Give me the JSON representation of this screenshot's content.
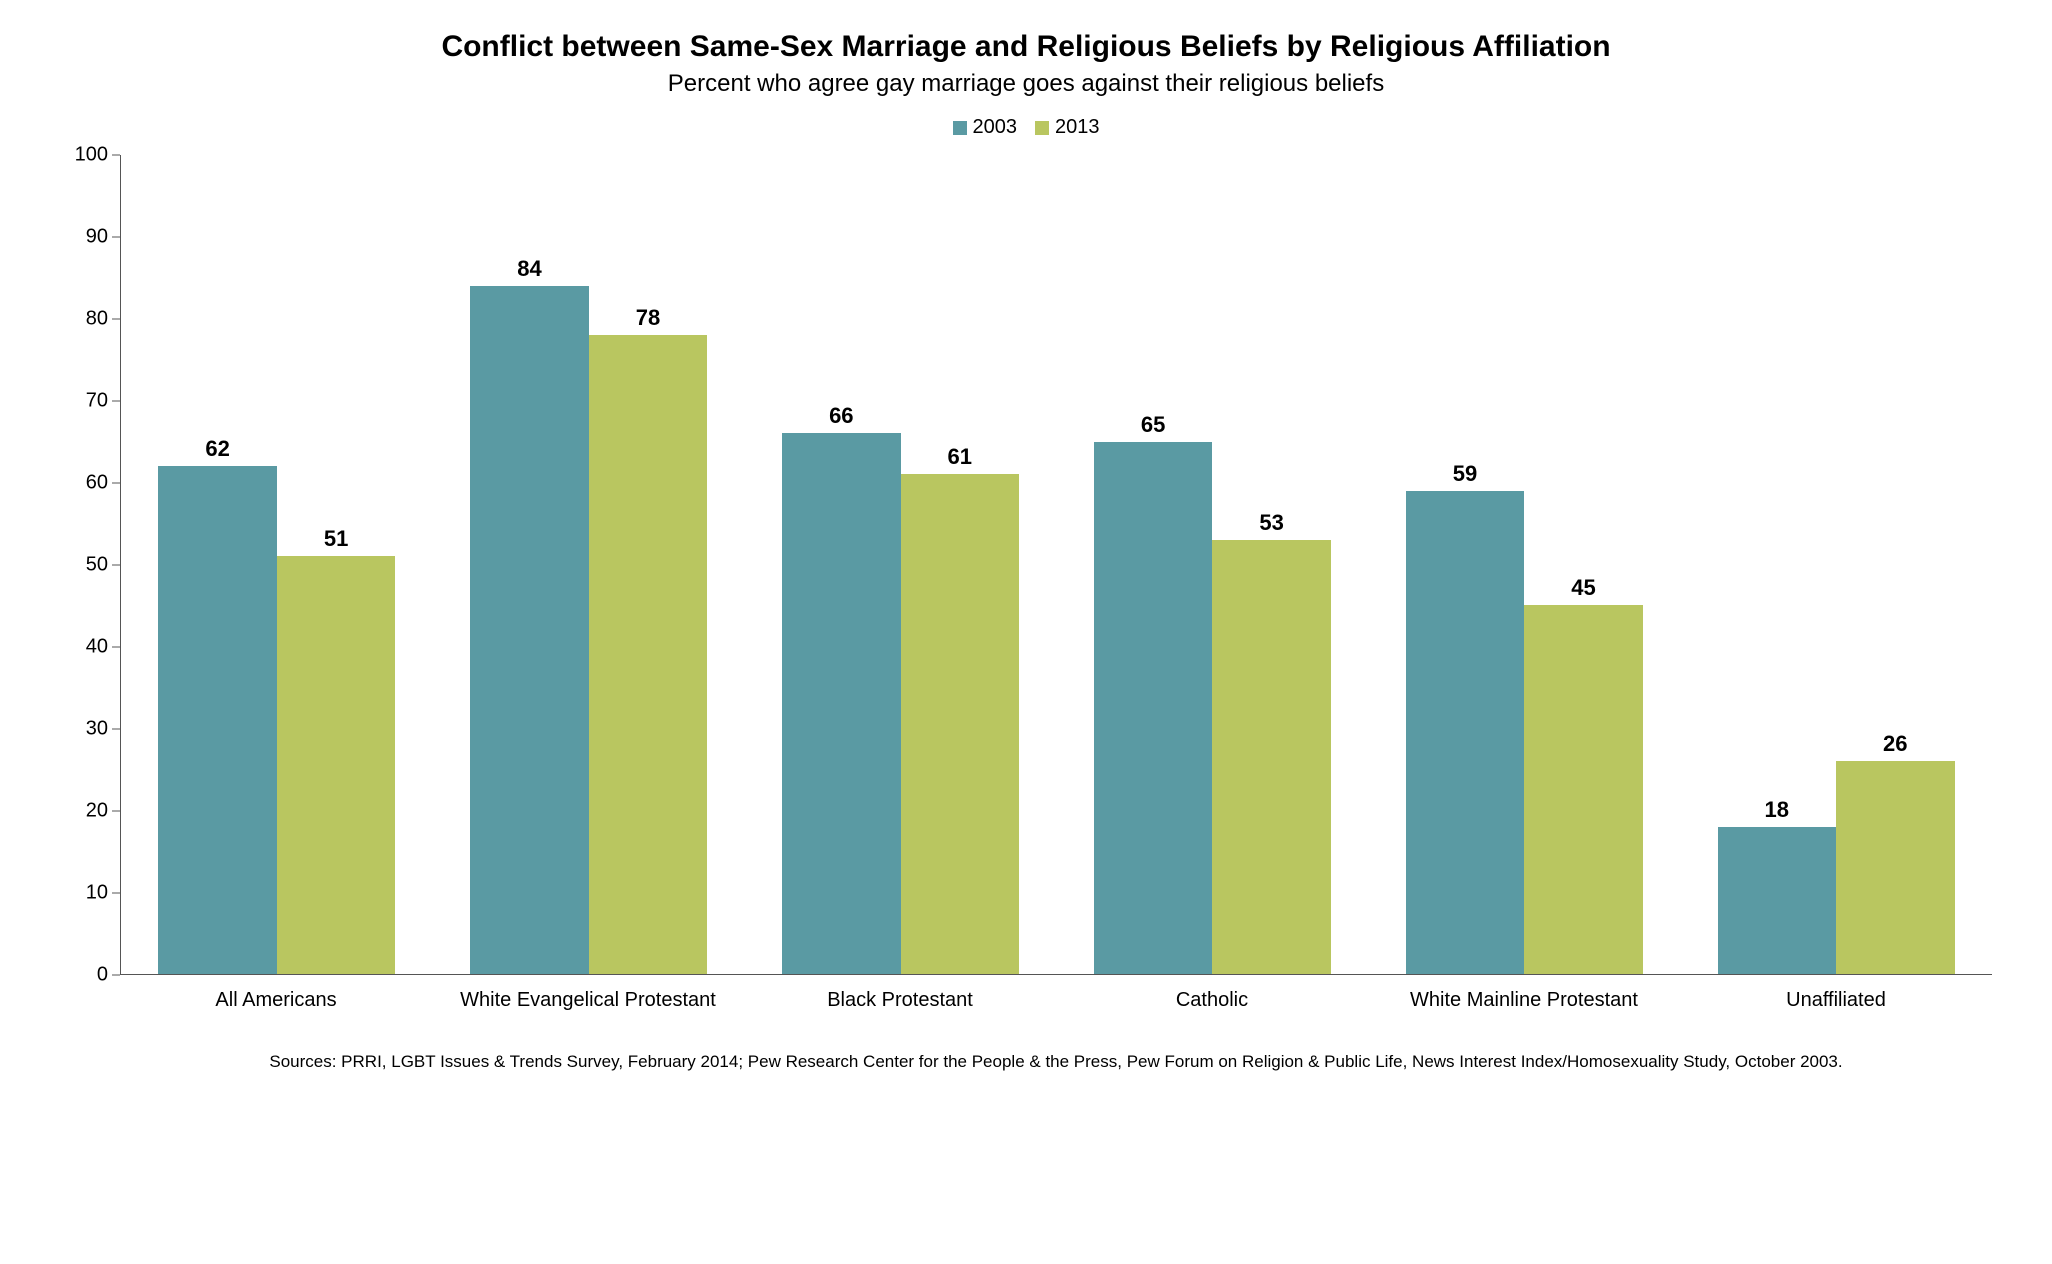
{
  "chart": {
    "type": "bar-grouped",
    "title": "Conflict between Same-Sex Marriage and Religious Beliefs by Religious Affiliation",
    "subtitle": "Percent who agree gay marriage goes against their religious beliefs",
    "title_fontsize": 30,
    "subtitle_fontsize": 24,
    "background_color": "#ffffff",
    "text_color": "#000000",
    "legend_fontsize": 20,
    "axis_fontsize": 20,
    "value_label_fontsize": 22,
    "category_label_fontsize": 20,
    "source_fontsize": 17,
    "ylim": [
      0,
      100
    ],
    "ytick_step": 10,
    "series": [
      {
        "name": "2003",
        "color": "#5a9aa3"
      },
      {
        "name": "2013",
        "color": "#b9c660"
      }
    ],
    "categories": [
      "All Americans",
      "White Evangelical Protestant",
      "Black Protestant",
      "Catholic",
      "White Mainline Protestant",
      "Unaffiliated"
    ],
    "values": {
      "2003": [
        62,
        84,
        66,
        65,
        59,
        18
      ],
      "2013": [
        51,
        78,
        61,
        53,
        45,
        26
      ]
    },
    "yticks": [
      0,
      10,
      20,
      30,
      40,
      50,
      60,
      70,
      80,
      90,
      100
    ],
    "source": "Sources: PRRI, LGBT Issues & Trends Survey, February 2014; Pew Research Center for the People & the Press, Pew Forum on Religion & Public Life, News Interest Index/Homosexuality Study, October 2003."
  }
}
